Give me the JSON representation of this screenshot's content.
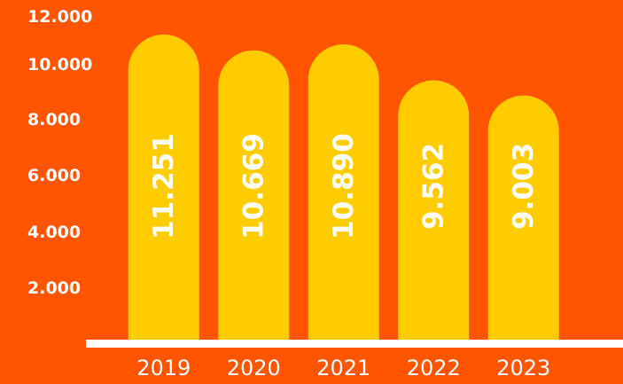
{
  "colors": {
    "background": "#FF5400",
    "bar": "#FFCC00",
    "text": "#FFFFFF",
    "baseline": "#FFFFFF"
  },
  "chart_data": {
    "type": "bar",
    "title": "",
    "xlabel": "",
    "ylabel": "",
    "categories": [
      "2019",
      "2020",
      "2021",
      "2022",
      "2023"
    ],
    "values": [
      11251,
      10669,
      10890,
      9562,
      9003
    ],
    "data_labels": [
      "11.251",
      "10.669",
      "10.890",
      "9.562",
      "9.003"
    ],
    "y_ticks": [
      {
        "value": 2000,
        "label": "2.000"
      },
      {
        "value": 4000,
        "label": "4.000"
      },
      {
        "value": 6000,
        "label": "6.000"
      },
      {
        "value": 8000,
        "label": "8.000"
      },
      {
        "value": 10000,
        "label": "10.000"
      },
      {
        "value": 12000,
        "label": "12.000"
      }
    ],
    "ylim": [
      0,
      12000
    ],
    "grid": false,
    "legend": "none",
    "data_label_orientation": "vertical"
  }
}
